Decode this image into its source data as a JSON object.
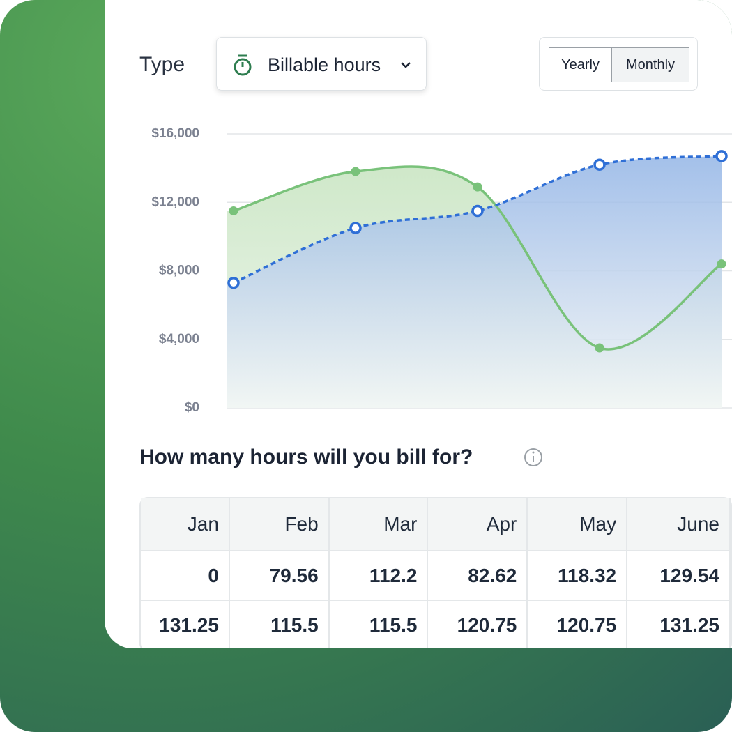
{
  "controls": {
    "type_label": "Type",
    "dropdown": "Billable hours",
    "toggle": [
      "Yearly",
      "Monthly"
    ]
  },
  "chart_data": {
    "type": "area-line",
    "categories": [
      null,
      null,
      null,
      null,
      null
    ],
    "series": [
      {
        "color": "#79c27a",
        "values": [
          11500,
          13800,
          12900,
          3500,
          8400
        ]
      },
      {
        "color": "#2f6fd6",
        "values": [
          7300,
          10500,
          11500,
          14200,
          14700
        ]
      }
    ],
    "ylim": [
      0,
      16000
    ],
    "yticks": [
      {
        "value": 0,
        "label": "$0"
      },
      {
        "value": 4000,
        "label": "$4,000"
      },
      {
        "value": 8000,
        "label": "$8,000"
      },
      {
        "value": 12000,
        "label": "$12,000"
      },
      {
        "value": 16000,
        "label": "$16,000"
      }
    ],
    "grid": true
  },
  "question": "How many hours will you bill for?",
  "table": {
    "header": [
      "Jan",
      "Feb",
      "Mar",
      "Apr",
      "May",
      "June"
    ],
    "rows": [
      [
        "0",
        "79.56",
        "112.2",
        "82.62",
        "118.32",
        "129.54"
      ],
      [
        "131.25",
        "115.5",
        "115.5",
        "120.75",
        "120.75",
        "131.25"
      ]
    ]
  }
}
